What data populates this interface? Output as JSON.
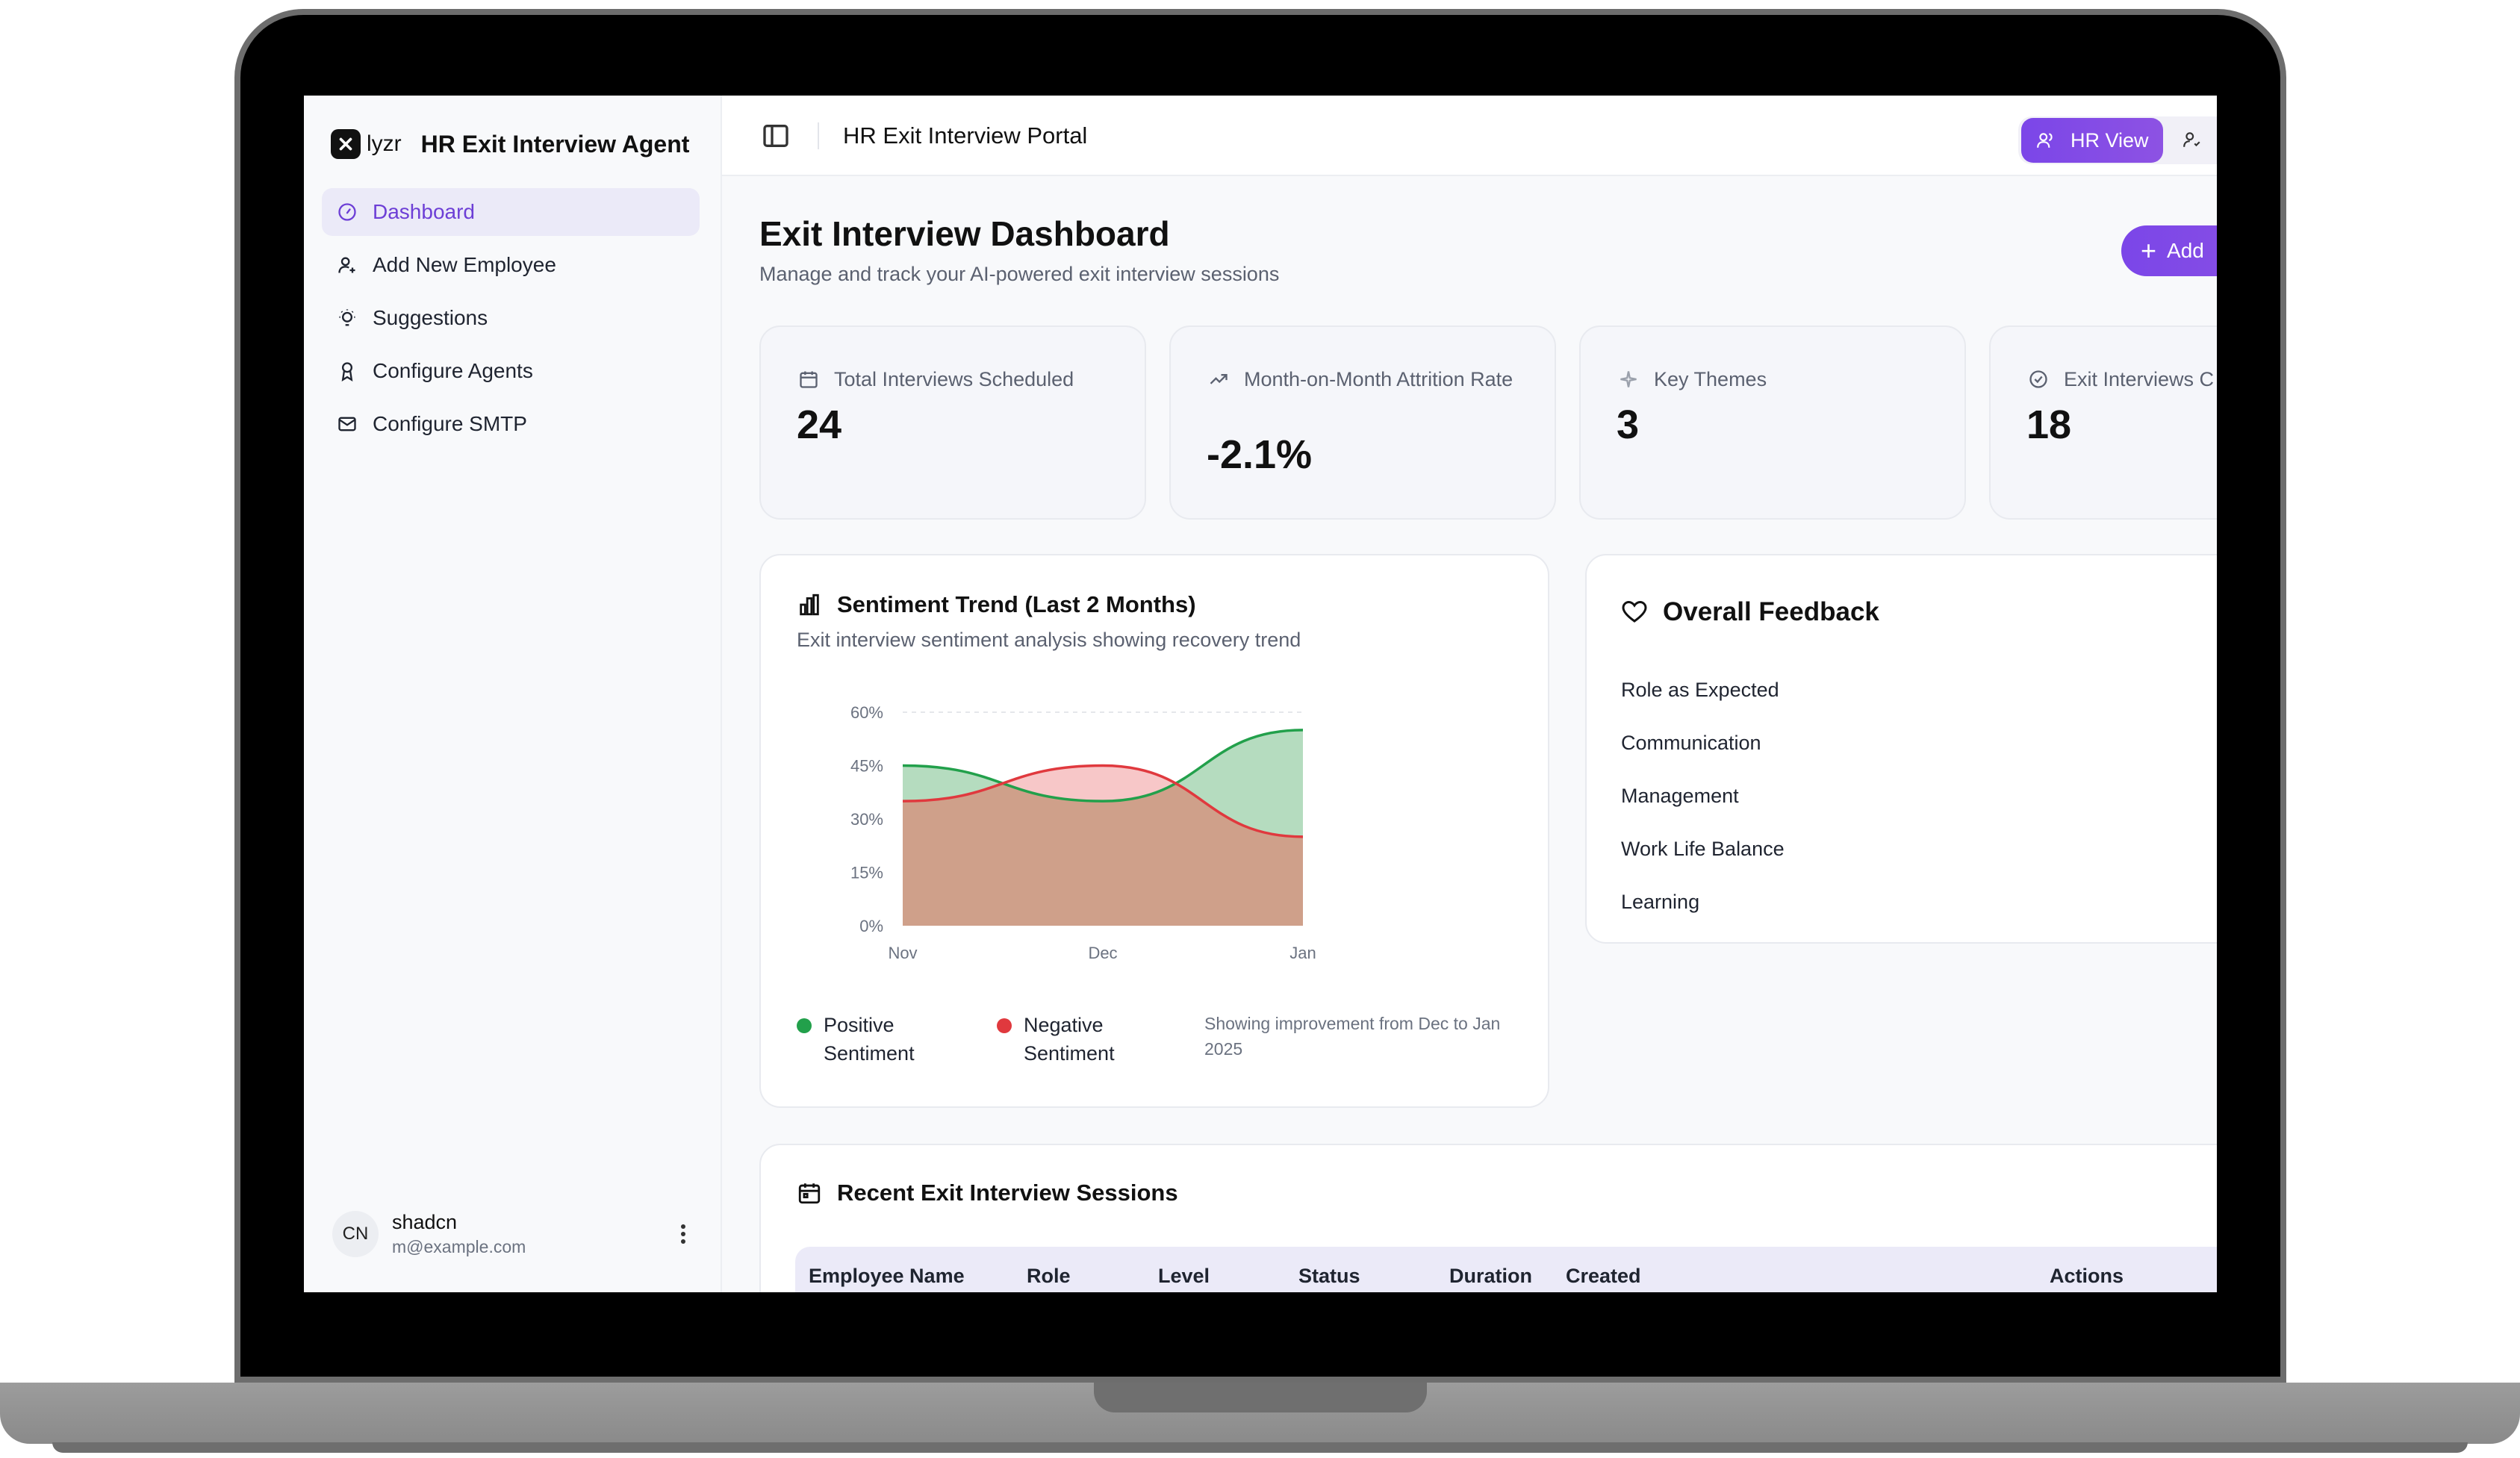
{
  "sidebar": {
    "brand_name": "lyzr",
    "app_title": "HR Exit Interview Agent",
    "nav_items": [
      {
        "label": "Dashboard",
        "icon": "gauge-icon",
        "active": true
      },
      {
        "label": "Add New Employee",
        "icon": "user-plus-icon",
        "active": false
      },
      {
        "label": "Suggestions",
        "icon": "lightbulb-icon",
        "active": false
      },
      {
        "label": "Configure Agents",
        "icon": "award-icon",
        "active": false
      },
      {
        "label": "Configure SMTP",
        "icon": "mail-icon",
        "active": false
      }
    ],
    "user": {
      "initials": "CN",
      "name": "shadcn",
      "email": "m@example.com"
    }
  },
  "topbar": {
    "title": "HR Exit Interview Portal",
    "hr_view_label": "HR View"
  },
  "header": {
    "title": "Exit Interview Dashboard",
    "subtitle": "Manage and track your AI-powered exit interview sessions",
    "add_label": "Add"
  },
  "stats": [
    {
      "label": "Total Interviews Scheduled",
      "value": "24",
      "icon": "calendar-icon"
    },
    {
      "label": "Month-on-Month Attrition Rate",
      "value": "-2.1%",
      "icon": "trending-icon"
    },
    {
      "label": "Key Themes",
      "value": "3",
      "icon": "sparkle-icon"
    },
    {
      "label": "Exit Interviews C",
      "value": "18",
      "icon": "check-circle-icon"
    }
  ],
  "sentiment": {
    "title": "Sentiment Trend (Last 2 Months)",
    "subtitle": "Exit interview sentiment analysis showing recovery trend",
    "legend_positive": "Positive Sentiment",
    "legend_negative": "Negative Sentiment",
    "note": "Showing improvement from Dec to Jan 2025"
  },
  "chart_data": {
    "type": "area",
    "x": [
      "Nov",
      "Dec",
      "Jan"
    ],
    "y_ticks": [
      "0%",
      "15%",
      "30%",
      "45%",
      "60%"
    ],
    "ylim": [
      0,
      60
    ],
    "grid": "dashed horizontal at top",
    "series": [
      {
        "name": "Positive Sentiment",
        "values": [
          45,
          35,
          55
        ],
        "color": "#22a04b",
        "fill": "#b5dcbf"
      },
      {
        "name": "Negative Sentiment",
        "values": [
          35,
          45,
          25
        ],
        "color": "#e0393e",
        "fill": "#f4b4b6"
      }
    ],
    "overlap_fill": "#cfa08a",
    "legend_position": "bottom"
  },
  "feedback": {
    "title": "Overall Feedback",
    "items": [
      "Role as Expected",
      "Communication",
      "Management",
      "Work Life Balance",
      "Learning"
    ]
  },
  "sessions": {
    "title": "Recent Exit Interview Sessions",
    "columns": [
      "Employee Name",
      "Role",
      "Level",
      "Status",
      "Duration",
      "Created",
      "Actions"
    ]
  },
  "colors": {
    "accent": "#7b46e8",
    "active_nav_bg": "#ebeaf8",
    "positive": "#22a04b",
    "negative": "#e0393e"
  }
}
